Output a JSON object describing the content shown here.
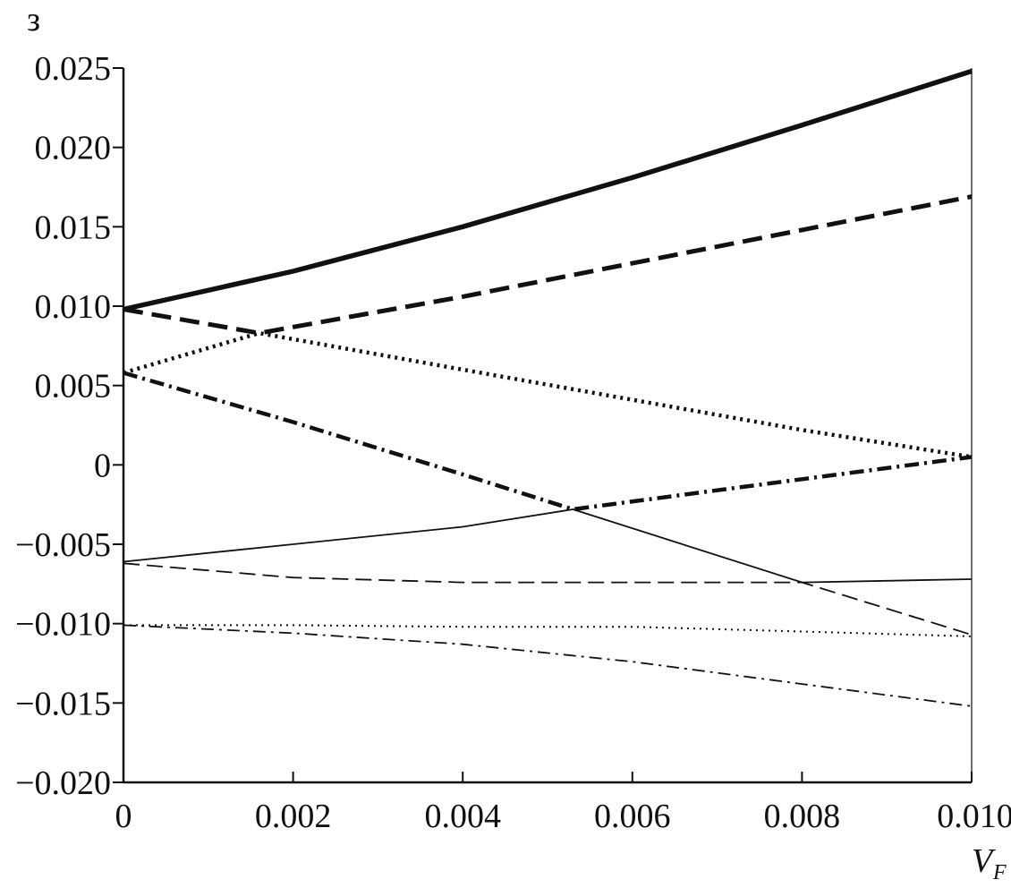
{
  "chart_data": {
    "type": "line",
    "title": "",
    "ylabel": "з",
    "xlabel": "V",
    "xlabel_subscript": "F",
    "xlim": [
      0,
      0.01
    ],
    "ylim": [
      -0.02,
      0.025
    ],
    "x_ticks": [
      {
        "value": 0,
        "label": "0"
      },
      {
        "value": 0.002,
        "label": "0.002"
      },
      {
        "value": 0.004,
        "label": "0.004"
      },
      {
        "value": 0.006,
        "label": "0.006"
      },
      {
        "value": 0.008,
        "label": "0.008"
      },
      {
        "value": 0.01,
        "label": "0.010"
      }
    ],
    "y_ticks": [
      {
        "value": 0.025,
        "label": "0.025"
      },
      {
        "value": 0.02,
        "label": "0.020"
      },
      {
        "value": 0.015,
        "label": "0.015"
      },
      {
        "value": 0.01,
        "label": "0.010"
      },
      {
        "value": 0.005,
        "label": "0.005"
      },
      {
        "value": 0,
        "label": "0"
      },
      {
        "value": -0.005,
        "label": "−0.005"
      },
      {
        "value": -0.01,
        "label": "−0.010"
      },
      {
        "value": -0.015,
        "label": "−0.015"
      },
      {
        "value": -0.02,
        "label": "−0.020"
      }
    ],
    "grid": false,
    "legend": "none",
    "series": [
      {
        "style": "thick-solid",
        "x": [
          0,
          0.002,
          0.004,
          0.006,
          0.008,
          0.01
        ],
        "y": [
          0.0098,
          0.0122,
          0.015,
          0.0181,
          0.0214,
          0.0248
        ]
      },
      {
        "style": "thick-dashed",
        "x": [
          0,
          0.0016,
          0.004,
          0.006,
          0.008,
          0.01
        ],
        "y": [
          0.0098,
          0.0083,
          0.0106,
          0.0127,
          0.0148,
          0.0169
        ]
      },
      {
        "style": "thick-dotted",
        "x": [
          0,
          0.0016,
          0.004,
          0.006,
          0.008,
          0.01
        ],
        "y": [
          0.0058,
          0.0083,
          0.006,
          0.0041,
          0.0022,
          0.0005
        ]
      },
      {
        "style": "thick-dashdot",
        "x": [
          0,
          0.002,
          0.004,
          0.0053,
          0.007,
          0.008,
          0.01
        ],
        "y": [
          0.0058,
          0.0027,
          -0.0006,
          -0.0028,
          -0.0016,
          -0.0009,
          0.0005
        ]
      },
      {
        "style": "thin-solid",
        "x": [
          0,
          0.002,
          0.004,
          0.0053,
          0.008,
          0.01
        ],
        "y": [
          -0.0061,
          -0.005,
          -0.0039,
          -0.0028,
          -0.0074,
          -0.0072
        ]
      },
      {
        "style": "thin-dashed",
        "x": [
          0,
          0.002,
          0.004,
          0.006,
          0.008,
          0.01
        ],
        "y": [
          -0.0062,
          -0.0071,
          -0.0074,
          -0.0074,
          -0.0074,
          -0.0107
        ]
      },
      {
        "style": "thin-dotted",
        "x": [
          0,
          0.002,
          0.004,
          0.006,
          0.008,
          0.01
        ],
        "y": [
          -0.0101,
          -0.0101,
          -0.0102,
          -0.0102,
          -0.0105,
          -0.0108
        ]
      },
      {
        "style": "thin-dashdot",
        "x": [
          0,
          0.002,
          0.004,
          0.006,
          0.008,
          0.01
        ],
        "y": [
          -0.0101,
          -0.0106,
          -0.0113,
          -0.0124,
          -0.0138,
          -0.0152
        ]
      }
    ]
  }
}
